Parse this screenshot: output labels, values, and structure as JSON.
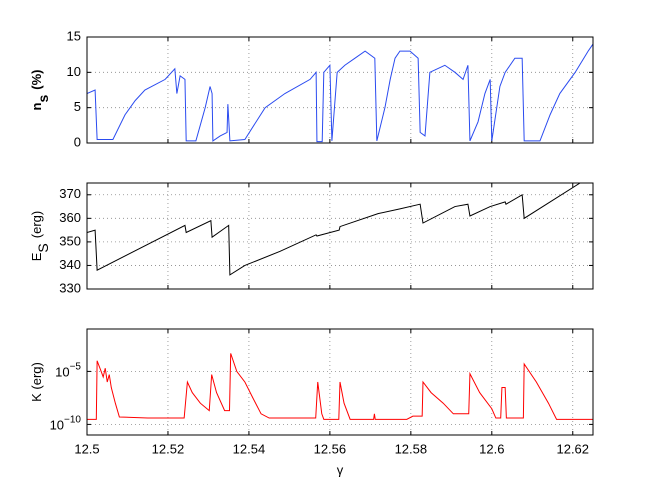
{
  "chart_data": [
    {
      "type": "line",
      "ylabel": [
        "n",
        "s",
        "(%)"
      ],
      "color": "#2a4bf0",
      "xlim": [
        12.5,
        12.625
      ],
      "xticks": [
        12.5,
        12.52,
        12.54,
        12.56,
        12.58,
        12.6,
        12.62
      ],
      "ylim": [
        0,
        15
      ],
      "yticks": [
        0,
        5,
        10,
        15
      ],
      "grid": true,
      "x": [
        12.5,
        12.502,
        12.5025,
        12.5064,
        12.5094,
        12.5119,
        12.5143,
        12.5193,
        12.5217,
        12.5222,
        12.523,
        12.5242,
        12.5245,
        12.5269,
        12.5292,
        12.5304,
        12.5309,
        12.5311,
        12.5329,
        12.5346,
        12.5348,
        12.5353,
        12.539,
        12.544,
        12.5489,
        12.5551,
        12.5566,
        12.5568,
        12.5581,
        12.5585,
        12.56,
        12.5605,
        12.5618,
        12.5637,
        12.5662,
        12.5687,
        12.5711,
        12.5716,
        12.5736,
        12.5749,
        12.5761,
        12.5773,
        12.5798,
        12.5818,
        12.5823,
        12.5835,
        12.5847,
        12.5884,
        12.5909,
        12.5929,
        12.5941,
        12.5946,
        12.5966,
        12.5983,
        12.5996,
        12.6,
        12.602,
        12.6033,
        12.6057,
        12.6075,
        12.608,
        12.6119,
        12.6144,
        12.6168,
        12.6206,
        12.6238,
        12.625
      ],
      "values": [
        7,
        7.5,
        0.5,
        0.5,
        4,
        6,
        7.5,
        9,
        10.5,
        7,
        9.5,
        9,
        0.3,
        0.3,
        5,
        8,
        7,
        0.3,
        1,
        1.5,
        5.5,
        0.3,
        0.5,
        5,
        7,
        9,
        10,
        0.2,
        0.2,
        10,
        11,
        0.3,
        10,
        11,
        12,
        13,
        12,
        0.3,
        5,
        9,
        12,
        13,
        13,
        12,
        1.5,
        1,
        10,
        11,
        10,
        9,
        11,
        0.3,
        3,
        7,
        9,
        0.3,
        8,
        10,
        12,
        12,
        0.3,
        0.3,
        4,
        7,
        10,
        13,
        14
      ]
    },
    {
      "type": "line",
      "ylabel": [
        "E",
        "S",
        "(erg)"
      ],
      "color": "#000000",
      "xlim": [
        12.5,
        12.625
      ],
      "xticks": [
        12.5,
        12.52,
        12.54,
        12.56,
        12.58,
        12.6,
        12.62
      ],
      "ylim": [
        330,
        375
      ],
      "yticks": [
        330,
        340,
        350,
        360,
        370
      ],
      "grid": true,
      "x": [
        12.5,
        12.502,
        12.5025,
        12.5242,
        12.5245,
        12.5306,
        12.5309,
        12.535,
        12.5353,
        12.539,
        12.5477,
        12.5566,
        12.5568,
        12.5623,
        12.5625,
        12.5719,
        12.5773,
        12.5823,
        12.583,
        12.5909,
        12.5941,
        12.5946,
        12.5996,
        12.6033,
        12.6035,
        12.6075,
        12.608,
        12.6218,
        12.625
      ],
      "values": [
        354,
        355,
        338,
        357,
        354,
        359,
        352,
        357,
        336,
        340,
        346,
        353,
        352.5,
        355,
        356.5,
        362,
        364,
        366,
        358,
        365,
        366,
        361,
        365,
        367,
        366,
        370,
        360,
        375,
        375
      ]
    },
    {
      "type": "line",
      "ylabel": [
        "K (erg)"
      ],
      "xlabel": "γ",
      "color": "#ff0000",
      "yscale": "log",
      "xlim": [
        12.5,
        12.625
      ],
      "xticks": [
        12.5,
        12.52,
        12.54,
        12.56,
        12.58,
        12.6,
        12.62
      ],
      "ylim": [
        1e-11,
        0.1
      ],
      "yticks": [
        {
          "value": 1e-10,
          "label": "10",
          "exponent": "−10"
        },
        {
          "value": 1e-05,
          "label": "10",
          "exponent": "−5"
        }
      ],
      "grid": true,
      "x": [
        12.5,
        12.5023,
        12.5025,
        12.5035,
        12.504,
        12.5045,
        12.505,
        12.5055,
        12.506,
        12.507,
        12.508,
        12.515,
        12.524,
        12.5248,
        12.526,
        12.528,
        12.5302,
        12.5308,
        12.532,
        12.534,
        12.5352,
        12.5355,
        12.537,
        12.539,
        12.541,
        12.543,
        12.545,
        12.5565,
        12.557,
        12.558,
        12.5585,
        12.5622,
        12.5625,
        12.5635,
        12.565,
        12.5708,
        12.571,
        12.5712,
        12.579,
        12.5805,
        12.5828,
        12.583,
        12.585,
        12.588,
        12.5905,
        12.5943,
        12.5946,
        12.597,
        12.6,
        12.601,
        12.6022,
        12.6025,
        12.6033,
        12.6036,
        12.6078,
        12.608,
        12.611,
        12.614,
        12.616,
        12.625
      ],
      "values": [
        3e-10,
        3e-10,
        0.0001,
        1e-05,
        3e-06,
        2e-05,
        1e-06,
        5e-06,
        3e-07,
        1e-08,
        5e-10,
        4e-10,
        4e-10,
        1e-06,
        1e-07,
        1e-08,
        2e-09,
        5e-06,
        1e-07,
        2e-09,
        2e-09,
        0.0005,
        1e-05,
        1e-06,
        3e-08,
        1e-09,
        4e-10,
        4e-10,
        1e-06,
        1e-09,
        3e-10,
        3e-10,
        1e-06,
        1e-08,
        3e-10,
        3e-10,
        1e-09,
        3e-10,
        3e-10,
        6e-10,
        6e-10,
        1e-06,
        1e-07,
        1e-08,
        1e-09,
        1e-09,
        6e-06,
        1e-07,
        3e-09,
        4e-10,
        4e-10,
        3e-07,
        3e-07,
        4e-10,
        4e-10,
        5e-05,
        1e-06,
        1e-08,
        3e-10,
        3e-10
      ]
    }
  ]
}
